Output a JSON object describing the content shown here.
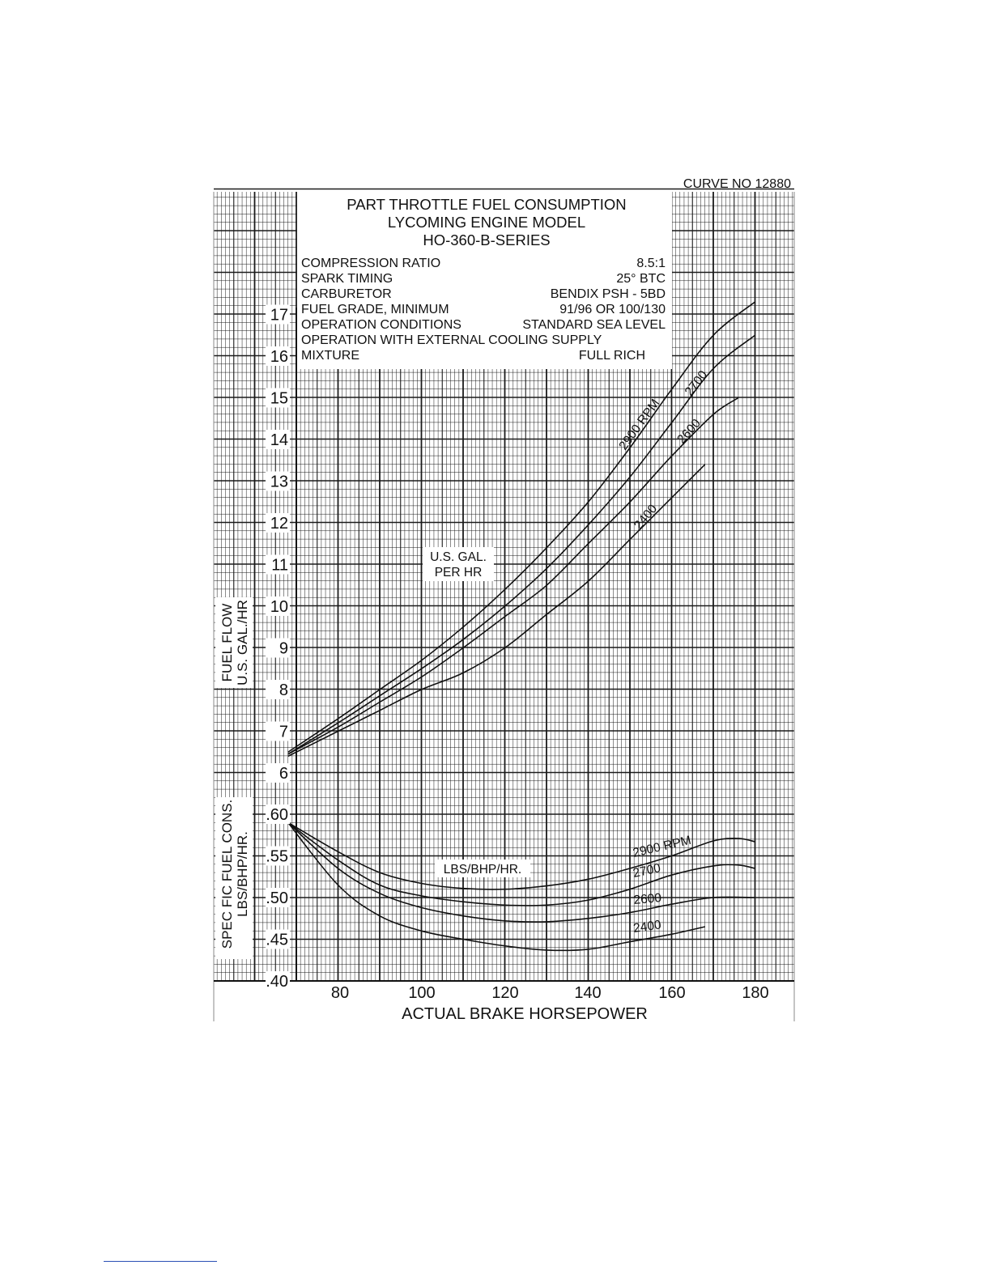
{
  "chart_data": {
    "type": "line",
    "curve_no": "CURVE NO 12880",
    "title_lines": [
      "PART THROTTLE FUEL CONSUMPTION",
      "LYCOMING ENGINE MODEL",
      "HO-360-B-SERIES"
    ],
    "specs": [
      {
        "label": "COMPRESSION  RATIO",
        "value": "8.5:1"
      },
      {
        "label": "SPARK  TIMING",
        "value": "25° BTC"
      },
      {
        "label": "CARBURETOR",
        "value": "BENDIX PSH - 5BD"
      },
      {
        "label": "FUEL GRADE, MINIMUM",
        "value": "91/96 OR 100/130"
      },
      {
        "label": "OPERATION CONDITIONS",
        "value": "STANDARD SEA  LEVEL"
      },
      {
        "label": "OPERATION WITH EXTERNAL COOLING SUPPLY",
        "value": ""
      },
      {
        "label": "MIXTURE",
        "value": "FULL RICH"
      }
    ],
    "xlabel": "ACTUAL BRAKE HORSEPOWER",
    "x_ticks": [
      "80",
      "100",
      "120",
      "140",
      "160",
      "180"
    ],
    "xlim": [
      68,
      190
    ],
    "fuel_flow": {
      "ylabel_lines": [
        "FUEL FLOW",
        "U.S. GAL./HR"
      ],
      "y_ticks": [
        "6",
        "7",
        "8",
        "9",
        "10",
        "11",
        "12",
        "13",
        "14",
        "15",
        "16",
        "17"
      ],
      "ylim": [
        6,
        17
      ],
      "annotation_lines": [
        "U.S. GAL.",
        "PER HR"
      ],
      "series": [
        {
          "name": "2900 RPM",
          "points": [
            [
              68,
              6.5
            ],
            [
              80,
              7.3
            ],
            [
              90,
              8.0
            ],
            [
              100,
              8.7
            ],
            [
              110,
              9.5
            ],
            [
              120,
              10.4
            ],
            [
              130,
              11.4
            ],
            [
              140,
              12.5
            ],
            [
              150,
              13.8
            ],
            [
              160,
              15.2
            ],
            [
              170,
              16.5
            ],
            [
              180,
              17.3
            ]
          ]
        },
        {
          "name": "2700",
          "points": [
            [
              68,
              6.45
            ],
            [
              80,
              7.2
            ],
            [
              90,
              7.85
            ],
            [
              100,
              8.5
            ],
            [
              110,
              9.2
            ],
            [
              120,
              10.0
            ],
            [
              130,
              10.9
            ],
            [
              140,
              11.95
            ],
            [
              150,
              13.1
            ],
            [
              160,
              14.4
            ],
            [
              170,
              15.7
            ],
            [
              180,
              16.5
            ]
          ]
        },
        {
          "name": "2600",
          "points": [
            [
              68,
              6.45
            ],
            [
              80,
              7.1
            ],
            [
              90,
              7.7
            ],
            [
              100,
              8.3
            ],
            [
              110,
              9.0
            ],
            [
              120,
              9.75
            ],
            [
              130,
              10.5
            ],
            [
              140,
              11.5
            ],
            [
              150,
              12.5
            ],
            [
              160,
              13.6
            ],
            [
              170,
              14.6
            ],
            [
              176,
              15.0
            ]
          ]
        },
        {
          "name": "2400",
          "points": [
            [
              68,
              6.4
            ],
            [
              80,
              7.0
            ],
            [
              90,
              7.5
            ],
            [
              100,
              8.0
            ],
            [
              110,
              8.4
            ],
            [
              120,
              9.0
            ],
            [
              130,
              9.8
            ],
            [
              140,
              10.6
            ],
            [
              150,
              11.6
            ],
            [
              160,
              12.6
            ],
            [
              168,
              13.4
            ]
          ]
        }
      ]
    },
    "specific_fuel": {
      "ylabel_lines": [
        "SPEC FIC FUEL CONS.",
        "LBS/BHP/HR."
      ],
      "y_ticks": [
        ".40",
        ".45",
        ".50",
        ".55",
        ".60"
      ],
      "ylim": [
        0.4,
        0.6
      ],
      "annotation": "LBS/BHP/HR.",
      "series": [
        {
          "name": "2900 RPM",
          "points": [
            [
              68,
              0.59
            ],
            [
              80,
              0.555
            ],
            [
              90,
              0.53
            ],
            [
              100,
              0.517
            ],
            [
              110,
              0.511
            ],
            [
              120,
              0.51
            ],
            [
              130,
              0.514
            ],
            [
              140,
              0.522
            ],
            [
              150,
              0.535
            ],
            [
              160,
              0.55
            ],
            [
              170,
              0.568
            ],
            [
              176,
              0.571
            ],
            [
              180,
              0.567
            ]
          ]
        },
        {
          "name": "2700",
          "points": [
            [
              68,
              0.59
            ],
            [
              80,
              0.545
            ],
            [
              90,
              0.515
            ],
            [
              100,
              0.502
            ],
            [
              110,
              0.495
            ],
            [
              120,
              0.491
            ],
            [
              130,
              0.491
            ],
            [
              140,
              0.497
            ],
            [
              150,
              0.51
            ],
            [
              160,
              0.527
            ],
            [
              170,
              0.538
            ],
            [
              176,
              0.539
            ],
            [
              180,
              0.535
            ]
          ]
        },
        {
          "name": "2600",
          "points": [
            [
              68,
              0.59
            ],
            [
              80,
              0.535
            ],
            [
              90,
              0.505
            ],
            [
              100,
              0.488
            ],
            [
              110,
              0.478
            ],
            [
              120,
              0.472
            ],
            [
              130,
              0.471
            ],
            [
              140,
              0.475
            ],
            [
              150,
              0.482
            ],
            [
              160,
              0.492
            ],
            [
              170,
              0.5
            ],
            [
              180,
              0.5
            ]
          ]
        },
        {
          "name": "2400",
          "points": [
            [
              68,
              0.59
            ],
            [
              80,
              0.515
            ],
            [
              90,
              0.478
            ],
            [
              100,
              0.46
            ],
            [
              110,
              0.45
            ],
            [
              120,
              0.442
            ],
            [
              130,
              0.437
            ],
            [
              140,
              0.438
            ],
            [
              150,
              0.447
            ],
            [
              160,
              0.456
            ],
            [
              168,
              0.465
            ]
          ]
        }
      ]
    }
  }
}
